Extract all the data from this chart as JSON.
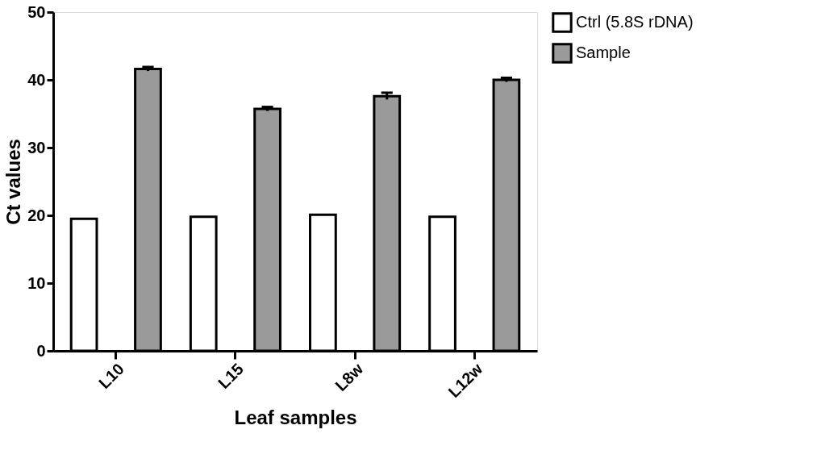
{
  "chart_data": {
    "type": "bar",
    "xlabel": "Leaf samples",
    "ylabel": "Ct values",
    "categories": [
      "L10",
      "L15",
      "L8w",
      "L12w"
    ],
    "series": [
      {
        "name": "Ctrl (5.8S rDNA)",
        "color": "#ffffff",
        "values": [
          19.5,
          19.8,
          20.1,
          19.8
        ]
      },
      {
        "name": "Sample",
        "color": "#9a9a9a",
        "values": [
          41.6,
          35.7,
          37.6,
          40.0
        ],
        "errors": [
          0.3,
          0.3,
          0.5,
          0.3
        ]
      }
    ],
    "ylim": [
      0,
      50
    ],
    "yticks": [
      0,
      10,
      20,
      30,
      40,
      50
    ],
    "grid": false,
    "legend": "top right"
  }
}
